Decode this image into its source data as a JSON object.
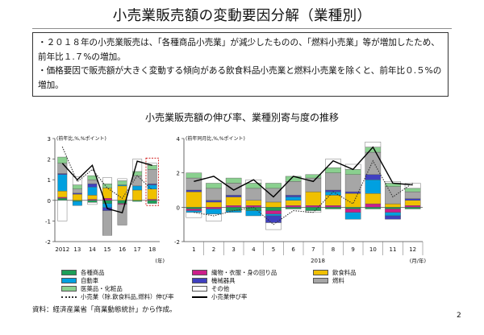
{
  "page": {
    "title": "小売業販売額の変動要因分解（業種別）",
    "bullets": [
      "・２０１８年の小売業販売は、「各種商品小売業」が減少したものの、「燃料小売業」等が増加したため、前年比１.７%の増加。",
      "・価格要因で販売額が大きく変動する傾向がある飲食料品小売業と燃料小売業を除くと、前年比０.５%の増加。"
    ],
    "chart_title": "小売業販売額の伸び率、業種別寄与度の推移",
    "source": "資料：経済産業省「商業動態統計」から作成。",
    "page_number": "2"
  },
  "colors": {
    "general": "#1e9e58",
    "auto": "#00a0e0",
    "medical": "#8ad08f",
    "textile": "#cc1f8a",
    "machinery": "#4040c0",
    "food": "#f0c000",
    "fuel": "#a6a6a6",
    "other": "#ffffff",
    "nofood_line": "#333333",
    "total_line": "#000000",
    "highlight_fill": "#ffff00"
  },
  "chart_data": [
    {
      "type": "bar",
      "stacked": true,
      "ylabel": "(前年比,%,%ポイント)",
      "ylim": [
        -2,
        3
      ],
      "yticks": [
        "-2",
        "-1",
        "0",
        "1",
        "2",
        "3"
      ],
      "categories": [
        "2012",
        "13",
        "14",
        "15",
        "16",
        "17",
        "18"
      ],
      "xunit": "(年)",
      "series": [
        {
          "name": "各種商品",
          "values": [
            0.1,
            -0.05,
            -0.1,
            -0.15,
            -0.15,
            -0.05,
            -0.15
          ]
        },
        {
          "name": "織物・衣服・身の回り品",
          "values": [
            0.05,
            0.0,
            0.05,
            0.1,
            -0.05,
            0.0,
            0.05
          ]
        },
        {
          "name": "飲食料品",
          "values": [
            0.3,
            0.3,
            0.2,
            0.5,
            0.7,
            0.5,
            0.5
          ]
        },
        {
          "name": "自動車",
          "values": [
            0.8,
            -0.2,
            0.4,
            -0.2,
            0.05,
            0.2,
            0.2
          ]
        },
        {
          "name": "機械器具",
          "values": [
            0.05,
            0.05,
            0.15,
            -0.15,
            0.0,
            0.0,
            0.05
          ]
        },
        {
          "name": "燃料",
          "values": [
            0.5,
            0.2,
            0.2,
            -1.2,
            -1.0,
            0.5,
            0.7
          ]
        },
        {
          "name": "医薬品・化粧品",
          "values": [
            0.3,
            0.2,
            0.2,
            0.2,
            0.2,
            0.2,
            0.2
          ]
        },
        {
          "name": "その他",
          "values": [
            -1.0,
            0.4,
            -0.1,
            0.3,
            0.1,
            0.6,
            0.1
          ]
        }
      ],
      "lines": [
        {
          "name": "小売業伸び率",
          "values": [
            1.8,
            1.0,
            1.7,
            -0.4,
            -0.6,
            1.9,
            1.7
          ]
        },
        {
          "name": "小売業（除.飲食料品,燃料）伸び率",
          "values": [
            2.6,
            0.9,
            1.5,
            0.6,
            0.1,
            1.2,
            0.5
          ]
        }
      ]
    },
    {
      "type": "bar",
      "stacked": true,
      "ylabel": "(前年同月比,%,%ポイント)",
      "ylim": [
        -2,
        4
      ],
      "yticks": [
        "-2",
        "0",
        "2",
        "4"
      ],
      "categories": [
        "1",
        "2",
        "3",
        "4",
        "5",
        "6",
        "7",
        "8",
        "9",
        "10",
        "11",
        "12"
      ],
      "year_label": "2018",
      "xunit": "(月/年)",
      "series": [
        {
          "name": "各種商品",
          "values": [
            -0.1,
            0.0,
            -0.2,
            -0.2,
            -0.2,
            -0.1,
            -0.2,
            -0.1,
            -0.1,
            -0.1,
            -0.1,
            -0.1
          ]
        },
        {
          "name": "織物・衣服・身の回り品",
          "values": [
            -0.1,
            -0.1,
            0.1,
            0.1,
            -0.2,
            0.1,
            0.1,
            0.1,
            -0.2,
            0.2,
            -0.2,
            0.1
          ]
        },
        {
          "name": "飲食料品",
          "values": [
            0.9,
            0.3,
            0.5,
            0.3,
            0.3,
            0.3,
            0.8,
            0.6,
            0.8,
            0.6,
            0.2,
            0.3
          ]
        },
        {
          "name": "自動車",
          "values": [
            -0.1,
            -0.3,
            -0.1,
            -0.3,
            -0.1,
            0.2,
            0.0,
            0.2,
            -0.4,
            0.8,
            -0.2,
            0.0
          ]
        },
        {
          "name": "機械器具",
          "values": [
            0.1,
            0.1,
            0.1,
            0.0,
            -0.4,
            0.1,
            0.0,
            0.1,
            0.1,
            0.3,
            -0.2,
            0.1
          ]
        },
        {
          "name": "燃料",
          "values": [
            0.7,
            0.7,
            0.7,
            0.7,
            0.8,
            0.8,
            0.8,
            1.0,
            1.0,
            1.3,
            1.0,
            0.4
          ]
        },
        {
          "name": "医薬品・化粧品",
          "values": [
            0.3,
            0.3,
            0.3,
            0.3,
            0.3,
            0.3,
            0.2,
            0.3,
            0.3,
            0.3,
            0.2,
            0.2
          ]
        },
        {
          "name": "その他",
          "values": [
            -0.3,
            -0.4,
            0.0,
            0.2,
            -0.4,
            0.0,
            -0.1,
            0.5,
            0.3,
            0.3,
            0.1,
            0.3
          ]
        }
      ],
      "lines": [
        {
          "name": "小売業伸び率",
          "values": [
            1.5,
            1.8,
            1.0,
            1.6,
            0.6,
            1.8,
            1.5,
            2.7,
            2.2,
            3.5,
            1.4,
            1.3
          ]
        },
        {
          "name": "小売業（除.飲食料品,燃料）伸び率",
          "values": [
            -0.3,
            -0.5,
            -0.2,
            0.0,
            -1.0,
            -0.2,
            -0.3,
            0.9,
            0.2,
            2.7,
            0.6,
            1.4
          ]
        }
      ]
    }
  ],
  "legend": [
    {
      "label": "各種商品",
      "key": "general",
      "kind": "box"
    },
    {
      "label": "織物・衣服・身の回り品",
      "key": "textile",
      "kind": "box"
    },
    {
      "label": "飲食料品",
      "key": "food",
      "kind": "box"
    },
    {
      "label": "自動車",
      "key": "auto",
      "kind": "box"
    },
    {
      "label": "機械器具",
      "key": "machinery",
      "kind": "box"
    },
    {
      "label": "燃料",
      "key": "fuel",
      "kind": "box"
    },
    {
      "label": "医薬品・化粧品",
      "key": "medical",
      "kind": "box"
    },
    {
      "label": "その他",
      "key": "other",
      "kind": "box"
    },
    {
      "label": "小売業（除.飲食料品,燃料）伸び率",
      "key": "nofood_line",
      "kind": "dotted"
    },
    {
      "label": "小売業伸び率",
      "key": "total_line",
      "kind": "solid"
    }
  ]
}
